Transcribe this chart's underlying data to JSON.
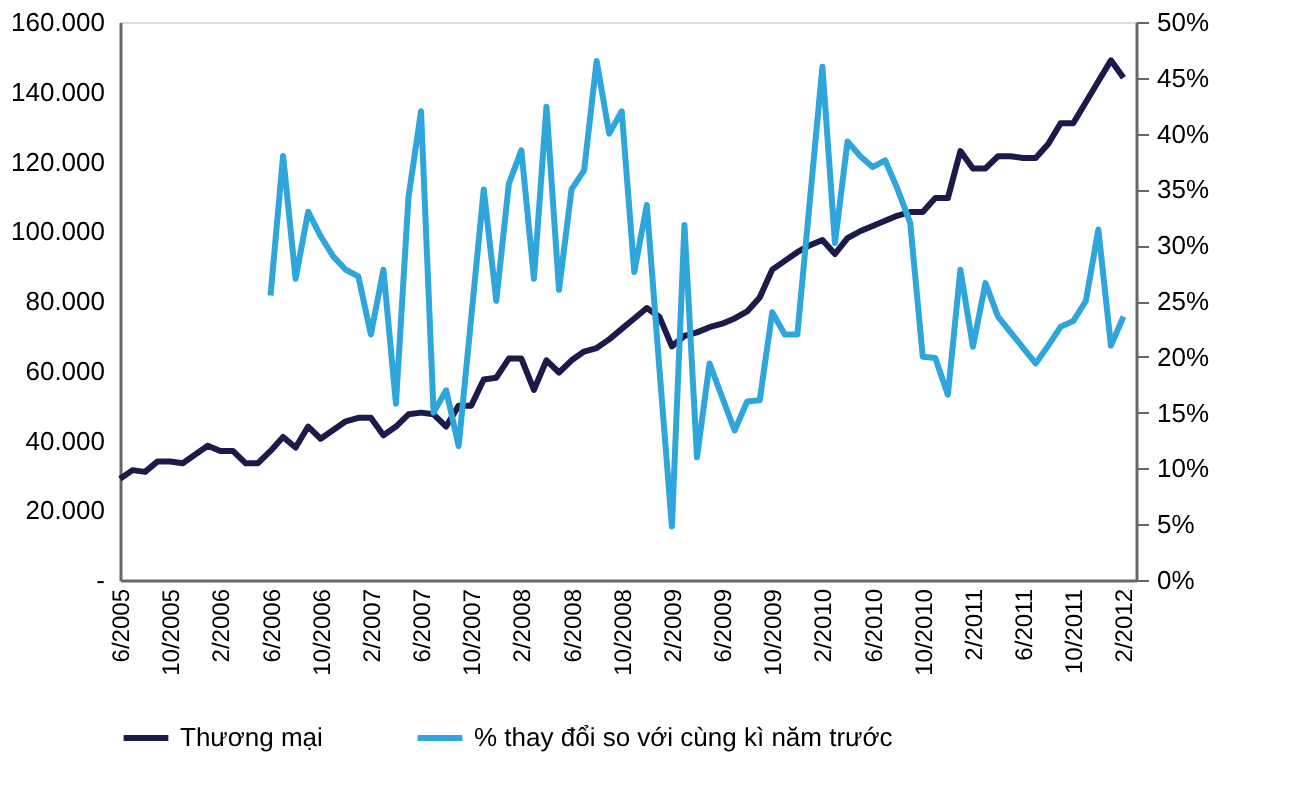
{
  "chart_data": {
    "type": "line",
    "categories": [
      "6/2005",
      null,
      null,
      null,
      "10/2005",
      null,
      null,
      null,
      "2/2006",
      null,
      null,
      null,
      "6/2006",
      null,
      null,
      null,
      "10/2006",
      null,
      null,
      null,
      "2/2007",
      null,
      null,
      null,
      "6/2007",
      null,
      null,
      null,
      "10/2007",
      null,
      null,
      null,
      "2/2008",
      null,
      null,
      null,
      "6/2008",
      null,
      null,
      null,
      "10/2008",
      null,
      null,
      null,
      "2/2009",
      null,
      null,
      null,
      "6/2009",
      null,
      null,
      null,
      "10/2009",
      null,
      null,
      null,
      "2/2010",
      null,
      null,
      null,
      "6/2010",
      null,
      null,
      null,
      "10/2010",
      null,
      null,
      null,
      "2/2011",
      null,
      null,
      null,
      "6/2011",
      null,
      null,
      null,
      "10/2011",
      null,
      null,
      null,
      "2/2012"
    ],
    "series": [
      {
        "name": "Thương mại",
        "color": "#1b1a4a",
        "values": [
          29000,
          31500,
          31000,
          34000,
          34000,
          33500,
          36000,
          38500,
          37000,
          37000,
          33500,
          33500,
          37000,
          41000,
          38000,
          44000,
          40500,
          43000,
          45500,
          46500,
          46500,
          41500,
          44000,
          47500,
          48000,
          47500,
          44000,
          50000,
          50000,
          57500,
          58000,
          63500,
          63500,
          54500,
          63000,
          59500,
          63000,
          65500,
          66500,
          69000,
          72000,
          75000,
          78000,
          75500,
          67000,
          70000,
          71000,
          72500,
          73500,
          75000,
          77000,
          81000,
          89000,
          91500,
          94000,
          96000,
          97500,
          93500,
          98000,
          100000,
          101500,
          103000,
          104500,
          105500,
          105500,
          109500,
          109500,
          123000,
          118000,
          118000,
          121500,
          121500,
          121000,
          121000,
          125000,
          131000,
          131000,
          137000,
          143000,
          149000,
          144000
        ]
      },
      {
        "name": "% thay đổi so với cùng kì năm trước",
        "color": "#2ea6dc",
        "axis": "y2",
        "values": [
          null,
          null,
          null,
          null,
          null,
          null,
          null,
          null,
          null,
          null,
          null,
          null,
          25.5,
          38,
          27,
          33,
          30.8,
          29,
          27.8,
          27.2,
          22,
          27.8,
          15.8,
          34.3,
          42,
          15,
          17,
          12,
          23.5,
          35,
          25,
          35.5,
          38.5,
          27,
          42.4,
          26,
          35,
          36.7,
          46.5,
          40,
          42,
          27.6,
          33.6,
          19,
          4.8,
          31.8,
          11,
          19.4,
          16.4,
          13.4,
          16,
          16.1,
          24,
          22,
          22,
          34,
          46,
          30.2,
          39.3,
          38,
          37,
          37.6,
          35,
          32,
          20,
          19.9,
          16.6,
          27.8,
          20.9,
          26.6,
          23.6,
          22.2,
          20.8,
          19.4,
          21,
          22.7,
          23.2,
          25,
          31.4,
          21,
          23.6
        ]
      }
    ],
    "ylim": [
      0,
      160000
    ],
    "yticks": [
      {
        "value": 0,
        "label": "-"
      },
      {
        "value": 20000,
        "label": "20.000"
      },
      {
        "value": 40000,
        "label": "40.000"
      },
      {
        "value": 60000,
        "label": "60.000"
      },
      {
        "value": 80000,
        "label": "80.000"
      },
      {
        "value": 100000,
        "label": "100.000"
      },
      {
        "value": 120000,
        "label": "120.000"
      },
      {
        "value": 140000,
        "label": "140.000"
      },
      {
        "value": 160000,
        "label": "160.000"
      }
    ],
    "y2lim": [
      0,
      50
    ],
    "y2ticks": [
      {
        "value": 0,
        "label": "0%"
      },
      {
        "value": 5,
        "label": "5%"
      },
      {
        "value": 10,
        "label": "10%"
      },
      {
        "value": 15,
        "label": "15%"
      },
      {
        "value": 20,
        "label": "20%"
      },
      {
        "value": 25,
        "label": "25%"
      },
      {
        "value": 30,
        "label": "30%"
      },
      {
        "value": 35,
        "label": "35%"
      },
      {
        "value": 40,
        "label": "40%"
      },
      {
        "value": 45,
        "label": "45%"
      },
      {
        "value": 50,
        "label": "50%"
      }
    ],
    "grid": false,
    "legend": "bottom",
    "marker": "none",
    "line_style": "solid"
  }
}
